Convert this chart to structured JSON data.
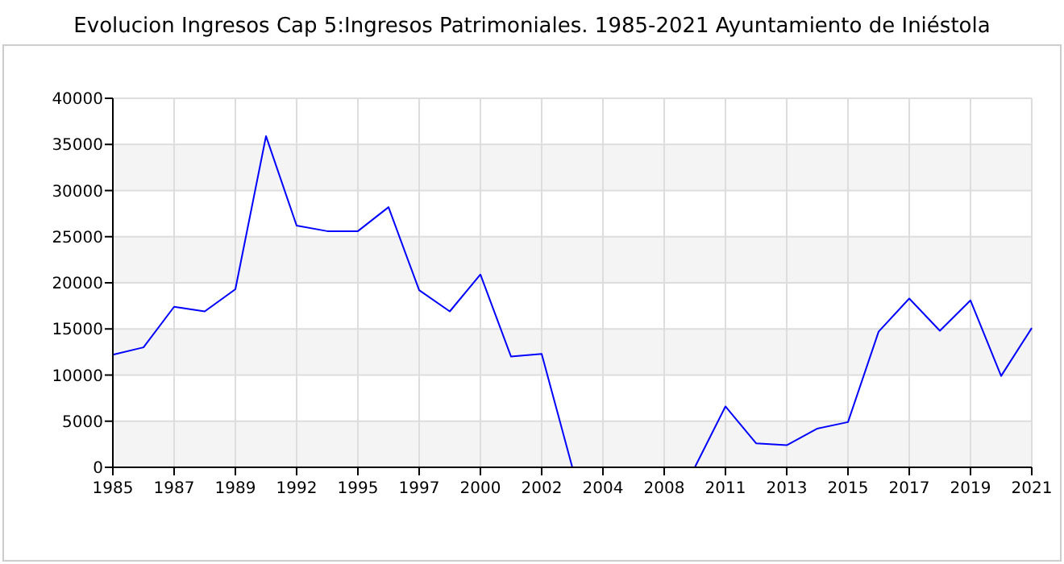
{
  "chart_data": {
    "type": "line",
    "title": "Evolucion Ingresos Cap 5:Ingresos Patrimoniales. 1985-2021 Ayuntamiento de Iniéstola",
    "categories": [
      "1985",
      null,
      "1987",
      null,
      "1989",
      null,
      "1992",
      null,
      "1995",
      null,
      "1997",
      null,
      "2000",
      null,
      "2002",
      null,
      "2004",
      null,
      "2008",
      null,
      "2011",
      null,
      "2013",
      null,
      "2015",
      null,
      "2017",
      null,
      "2019",
      null,
      "2021"
    ],
    "series": [
      {
        "color": "#0000ff",
        "values": [
          12200,
          13000,
          17400,
          16900,
          19300,
          35900,
          26200,
          25600,
          25600,
          28200,
          19200,
          16900,
          20900,
          12000,
          12300,
          0,
          0,
          0,
          0,
          0,
          6600,
          2600,
          2400,
          4200,
          4900,
          14700,
          18300,
          14800,
          18100,
          9900,
          15100
        ]
      }
    ],
    "ylim": [
      0,
      40000
    ],
    "yticks": [
      0,
      5000,
      10000,
      15000,
      20000,
      25000,
      30000,
      35000,
      40000
    ],
    "grid": true,
    "marker": "none",
    "line_style": "solid"
  }
}
